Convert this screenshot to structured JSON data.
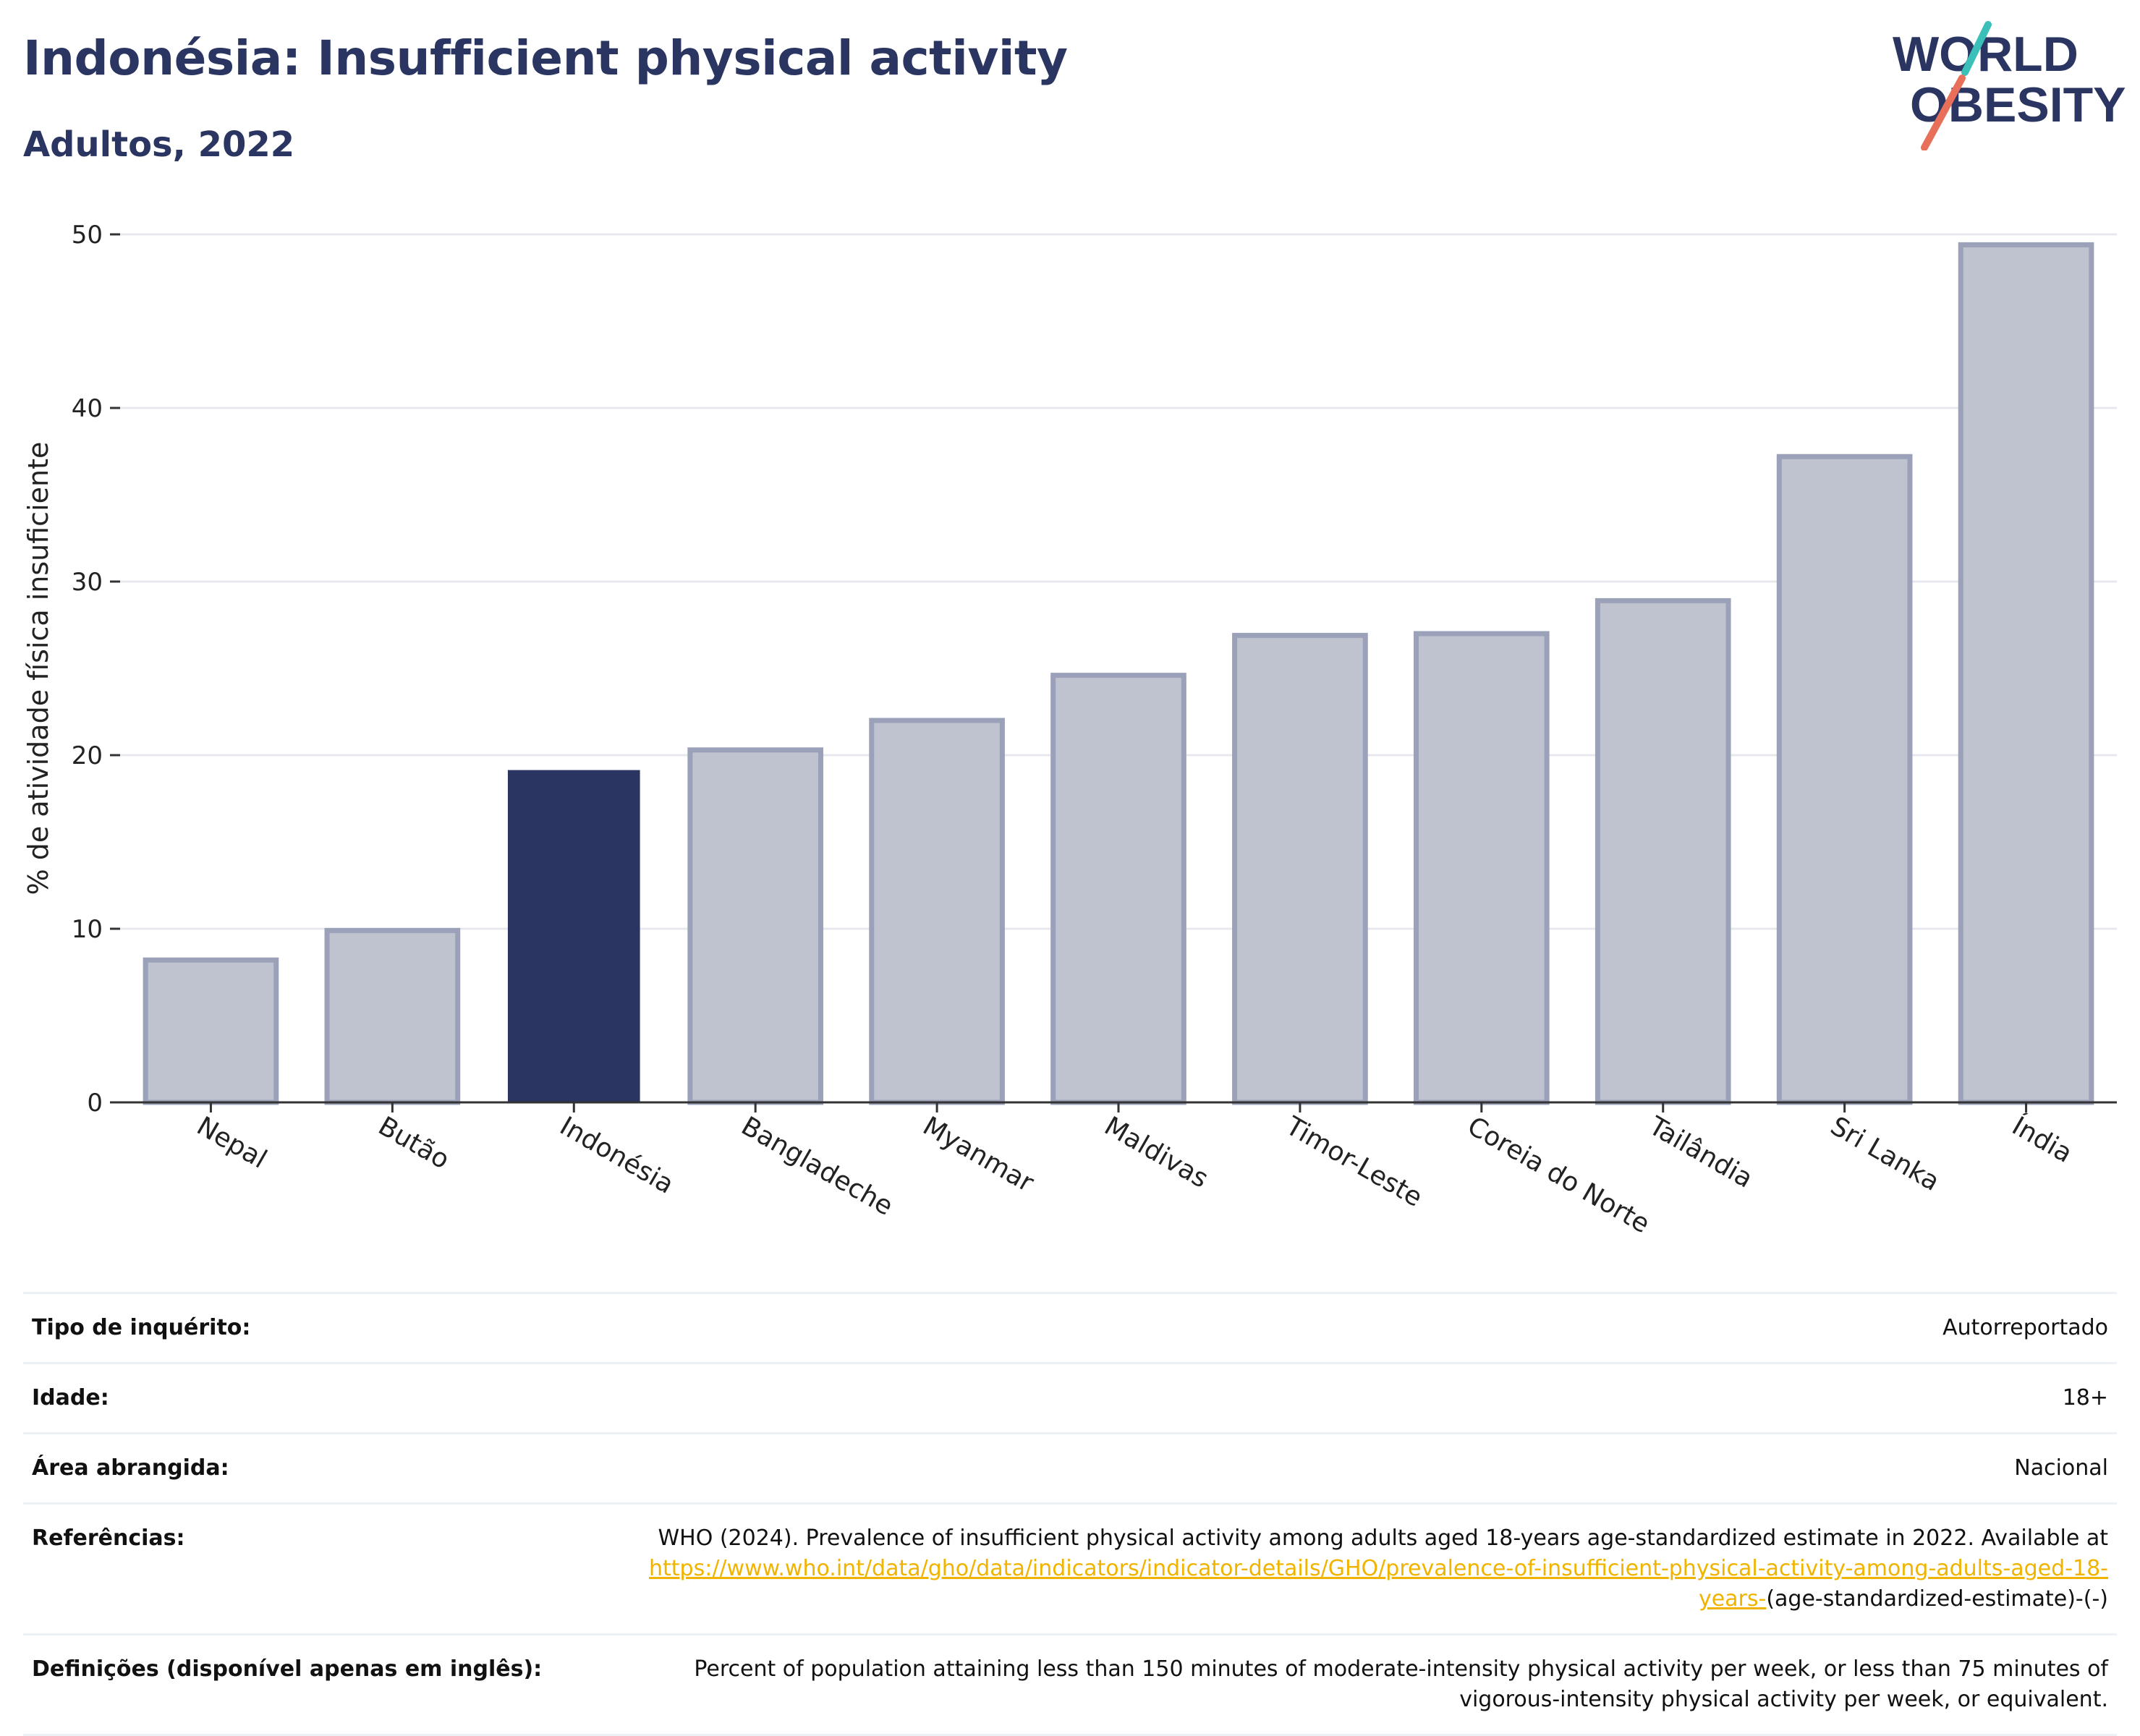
{
  "header": {
    "title": "Indonésia: Insufficient physical activity",
    "subtitle": "Adultos, 2022"
  },
  "logo": {
    "line1": "WORLD",
    "line2": "OBESITY"
  },
  "colors": {
    "highlight": "#2a3561",
    "bar_fill": "#bfc3d0",
    "bar_stroke": "#9aa1b8",
    "grid": "#e6e8ee",
    "text": "#2a3561",
    "link": "#f0b400",
    "logo_teal": "#3bbfb9",
    "logo_coral": "#e8705a"
  },
  "chart_data": {
    "type": "bar",
    "categories": [
      "Nepal",
      "Butão",
      "Indonésia",
      "Bangladeche",
      "Myanmar",
      "Maldivas",
      "Timor-Leste",
      "Coreia do Norte",
      "Tailândia",
      "Sri Lanka",
      "Índia"
    ],
    "values": [
      8.2,
      9.9,
      19.1,
      20.3,
      22.0,
      24.6,
      26.9,
      27.0,
      28.9,
      37.2,
      49.4
    ],
    "highlight": "Indonésia",
    "ylabel": "% de atividade física insuficiente",
    "xlabel": "",
    "ylim": [
      0,
      50
    ],
    "yticks": [
      0,
      10,
      20,
      30,
      40,
      50
    ],
    "grid": true,
    "legend": "none"
  },
  "info": {
    "rows": [
      {
        "label": "Tipo de inquérito:",
        "value": "Autorreportado"
      },
      {
        "label": "Idade:",
        "value": "18+"
      },
      {
        "label": "Área abrangida:",
        "value": "Nacional"
      }
    ],
    "references": {
      "label": "Referências:",
      "text_before": "WHO (2024). Prevalence of insufficient physical activity among adults aged 18-years age-standardized estimate in 2022. Available at ",
      "link_text": "https://www.who.int/data/gho/data/indicators/indicator-details/GHO/prevalence-of-insufficient-physical-activity-among-adults-aged-18-years-",
      "text_after": "(age-standardized-estimate)-(-)"
    },
    "definitions": {
      "label": "Definições (disponível apenas em inglês):",
      "text": "Percent of population attaining less than 150 minutes of moderate-intensity physical activity per week, or less than 75 minutes of vigorous-intensity physical activity per week, or equivalent."
    }
  }
}
